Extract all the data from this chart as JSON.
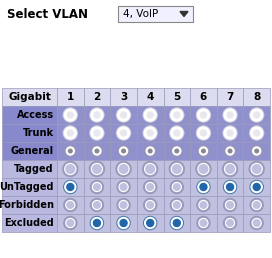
{
  "title": "Select VLAN",
  "dropdown_text": "4, VoIP",
  "col_headers": [
    "Gigabit",
    "1",
    "2",
    "3",
    "4",
    "5",
    "6",
    "7",
    "8"
  ],
  "row_labels": [
    "Access",
    "Trunk",
    "General",
    "Tagged",
    "UnTagged",
    "Forbidden",
    "Excluded"
  ],
  "bg_color": "#ffffff",
  "header_row_bg": "#dcdcf0",
  "row_label_colors_dark": "#8888cc",
  "row_label_colors_light": "#b8b8e0",
  "cell_colors_dark": "#9090cc",
  "cell_colors_light": "#c0c0e0",
  "border_color": "#9999bb",
  "dropdown_bg": "#f0f0ff",
  "dropdown_border": "#888888",
  "radio_outer_dark": "#7777aa",
  "radio_outer_light": "#9999bb",
  "teal_color": "#2266aa",
  "radio_types": [
    [
      "filled_white",
      "filled_white",
      "filled_white",
      "filled_white",
      "filled_white",
      "filled_white",
      "filled_white",
      "filled_white"
    ],
    [
      "filled_white",
      "filled_white",
      "filled_white",
      "filled_white",
      "filled_white",
      "filled_white",
      "filled_white",
      "filled_white"
    ],
    [
      "small_dot",
      "small_dot",
      "small_dot",
      "small_dot",
      "small_dot",
      "small_dot",
      "small_dot",
      "small_dot"
    ],
    [
      "open_ring",
      "open_ring",
      "open_ring",
      "open_ring",
      "open_ring",
      "open_ring",
      "open_ring",
      "open_ring"
    ],
    [
      "teal_dot",
      "open_ring",
      "open_ring",
      "open_ring",
      "open_ring",
      "teal_dot",
      "teal_dot",
      "teal_dot"
    ],
    [
      "open_ring",
      "open_ring",
      "open_ring",
      "open_ring",
      "open_ring",
      "open_ring",
      "open_ring",
      "open_ring"
    ],
    [
      "open_ring",
      "teal_dot",
      "teal_dot",
      "teal_dot",
      "teal_dot",
      "open_ring",
      "open_ring",
      "open_ring"
    ]
  ]
}
